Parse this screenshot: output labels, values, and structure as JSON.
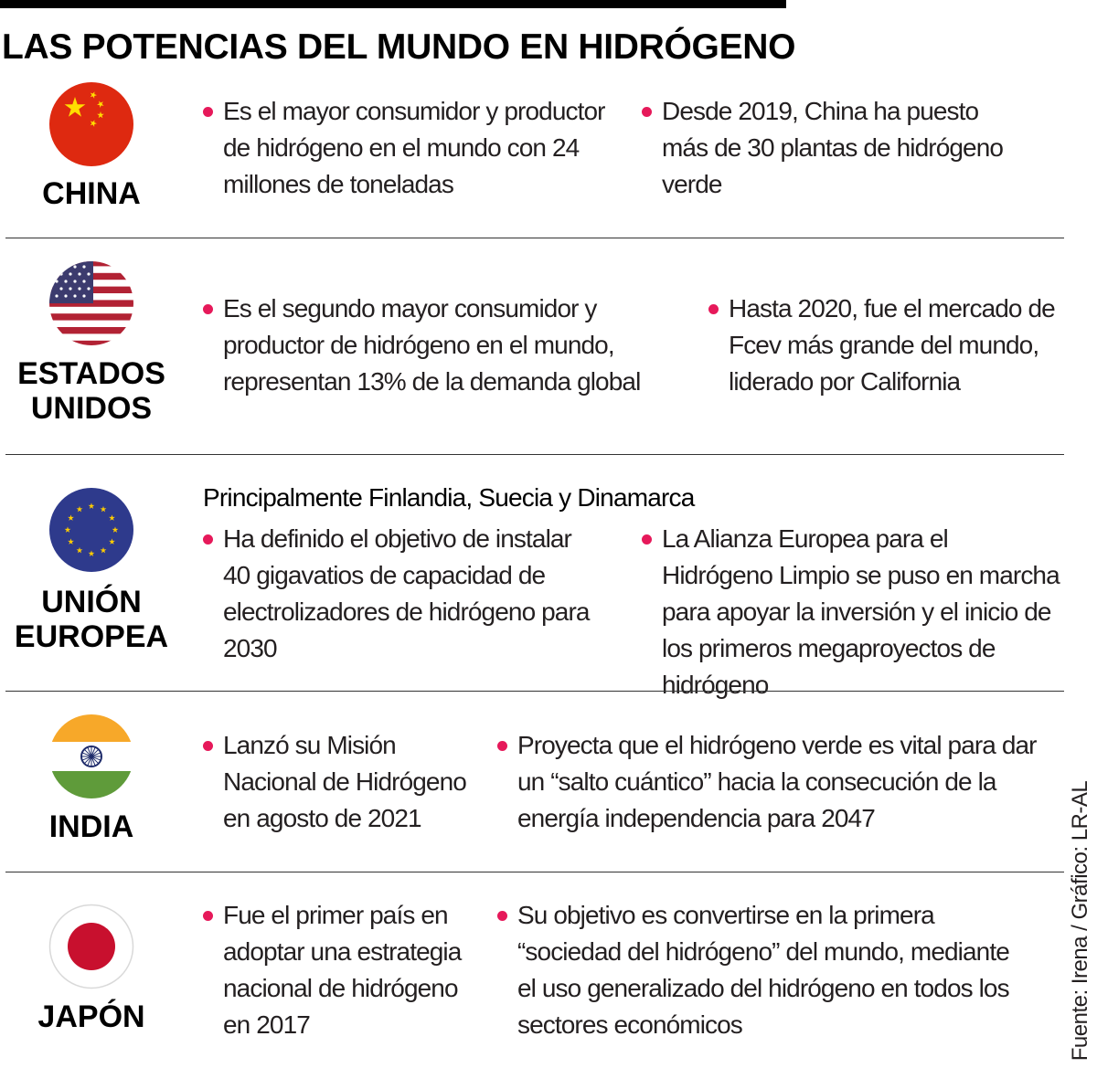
{
  "title": "LAS POTENCIAS DEL MUNDO EN HIDRÓGENO",
  "source": "Fuente: Irena / Gráfico: LR-AL",
  "colors": {
    "bullet": "#e6195a",
    "text": "#231f20"
  },
  "rows": [
    {
      "country": [
        "CHINA"
      ],
      "flag_icon": "china-flag-icon",
      "bullets": [
        "Es el mayor consumidor y productor de hidrógeno en el mundo con 24 millones de toneladas",
        "Desde 2019, China ha puesto más de 30 plantas de hidrógeno verde"
      ]
    },
    {
      "country": [
        "ESTADOS",
        "UNIDOS"
      ],
      "flag_icon": "usa-flag-icon",
      "bullets": [
        "Es el segundo mayor consumidor y productor de hidrógeno en el mundo, representan 13% de la demanda global",
        "Hasta 2020, fue el mercado de Fcev más grande del mundo, liderado por California"
      ]
    },
    {
      "country": [
        "UNIÓN",
        "EUROPEA"
      ],
      "flag_icon": "eu-flag-icon",
      "subheading": "Principalmente Finlandia, Suecia y Dinamarca",
      "bullets": [
        "Ha definido el objetivo de instalar 40 gigavatios de capacidad de electrolizadores de hidrógeno para 2030",
        "La Alianza Europea para el Hidrógeno Limpio se puso en marcha para apoyar la inversión y el inicio de los primeros megaproyectos de hidrógeno"
      ]
    },
    {
      "country": [
        "INDIA"
      ],
      "flag_icon": "india-flag-icon",
      "bullets": [
        "Lanzó su Misión Nacional de Hidrógeno en agosto de 2021",
        "Proyecta que el hidrógeno verde es vital para dar un “salto cuántico” hacia la consecución de la energía independencia para 2047"
      ]
    },
    {
      "country": [
        "JAPÓN"
      ],
      "flag_icon": "japan-flag-icon",
      "bullets": [
        "Fue el primer país en adoptar una estrategia nacional de hidrógeno en 2017",
        "Su objetivo es convertirse en la primera “sociedad del hidrógeno” del mundo, mediante el uso generalizado del hidrógeno en todos los sectores económicos"
      ]
    }
  ]
}
